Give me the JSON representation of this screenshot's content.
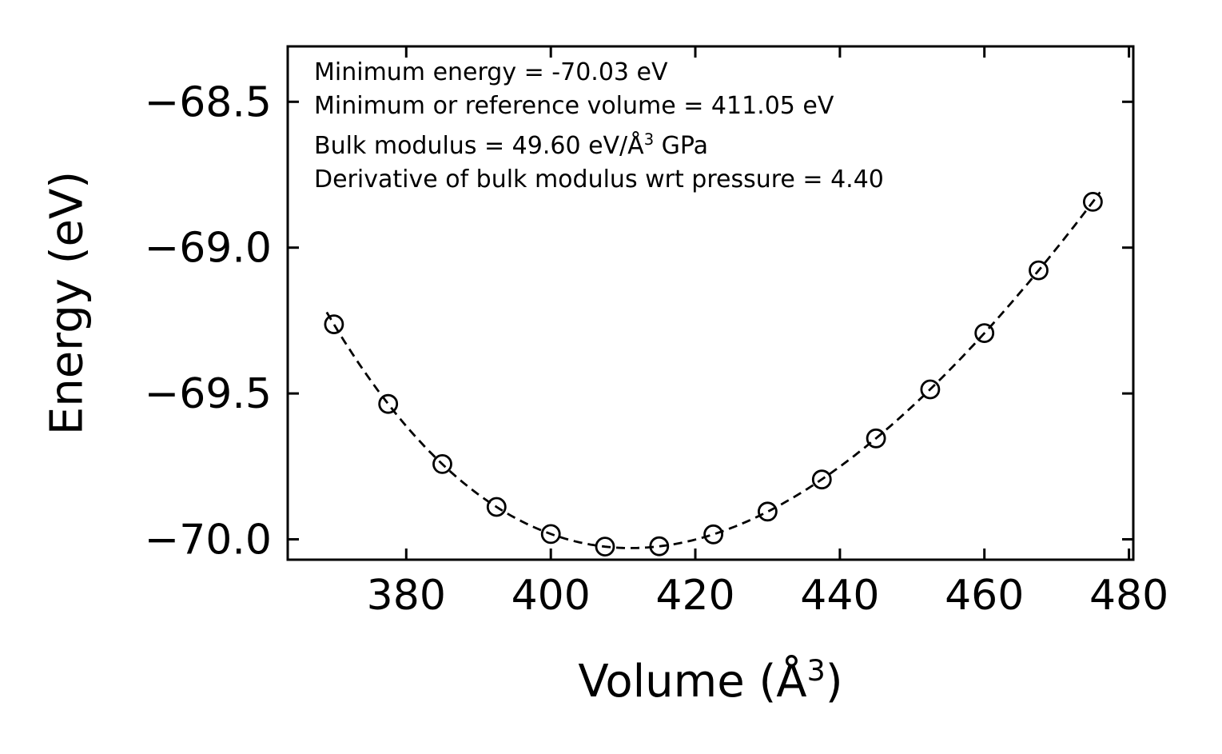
{
  "figure": {
    "background": "#ffffff",
    "ylabel": "Energy (eV)",
    "xlabel_prefix": "Volume (Å",
    "xlabel_sup": "3",
    "xlabel_suffix": ")",
    "annotation": {
      "line1": "Minimum energy = -70.03 eV",
      "line2": "Minimum or reference volume = 411.05 eV",
      "line3_prefix": "Bulk modulus = 49.60 eV/Å",
      "line3_sup": "3",
      "line3_suffix": " GPa",
      "line4": "Derivative of bulk modulus wrt pressure = 4.40"
    }
  },
  "chart_data": {
    "type": "scatter",
    "title": "",
    "xlabel": "Volume (Å³)",
    "ylabel": "Energy (eV)",
    "legend": "none",
    "grid": false,
    "marker": "open-circle",
    "line_style": "dashed",
    "color": "#000000",
    "x": [
      370.0,
      377.5,
      385.0,
      392.5,
      400.0,
      407.5,
      415.0,
      422.5,
      430.0,
      437.5,
      445.0,
      452.5,
      460.0,
      467.5,
      475.0
    ],
    "y": [
      -69.263,
      -69.536,
      -69.742,
      -69.889,
      -69.982,
      -70.025,
      -70.024,
      -69.983,
      -69.905,
      -69.795,
      -69.654,
      -69.486,
      -69.293,
      -69.078,
      -68.843
    ],
    "fit": {
      "model": "birch-murnaghan",
      "E0_eV": -70.03,
      "V0_A3": 411.05,
      "B0_GPa": 49.6,
      "B0_prime": 4.4,
      "curve_range": [
        369.0,
        476.3
      ]
    },
    "xticks": [
      380,
      400,
      420,
      440,
      460,
      480
    ],
    "yticks": [
      -68.5,
      -69.0,
      -69.5,
      -70.0
    ],
    "xlim": [
      363.6,
      480.6
    ],
    "ylim": [
      -70.07,
      -68.31
    ]
  }
}
